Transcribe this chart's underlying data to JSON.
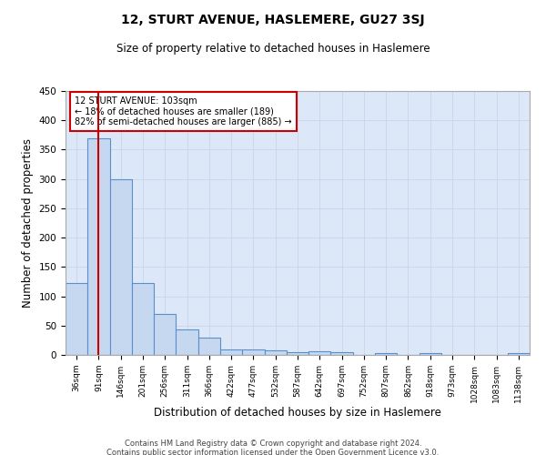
{
  "title": "12, STURT AVENUE, HASLEMERE, GU27 3SJ",
  "subtitle": "Size of property relative to detached houses in Haslemere",
  "xlabel": "Distribution of detached houses by size in Haslemere",
  "ylabel": "Number of detached properties",
  "footer_line1": "Contains HM Land Registry data © Crown copyright and database right 2024.",
  "footer_line2": "Contains public sector information licensed under the Open Government Licence v3.0.",
  "categories": [
    "36sqm",
    "91sqm",
    "146sqm",
    "201sqm",
    "256sqm",
    "311sqm",
    "366sqm",
    "422sqm",
    "477sqm",
    "532sqm",
    "587sqm",
    "642sqm",
    "697sqm",
    "752sqm",
    "807sqm",
    "862sqm",
    "918sqm",
    "973sqm",
    "1028sqm",
    "1083sqm",
    "1138sqm"
  ],
  "values": [
    123,
    370,
    300,
    123,
    70,
    44,
    29,
    9,
    10,
    7,
    5,
    6,
    4,
    0,
    3,
    0,
    3,
    0,
    0,
    0,
    3
  ],
  "bar_color": "#c5d8f0",
  "bar_edge_color": "#5b8fc9",
  "red_line_x": 1.0,
  "red_line_color": "#cc0000",
  "annotation_text": "12 STURT AVENUE: 103sqm\n← 18% of detached houses are smaller (189)\n82% of semi-detached houses are larger (885) →",
  "annotation_box_color": "#ffffff",
  "annotation_box_edge_color": "#cc0000",
  "ylim": [
    0,
    450
  ],
  "yticks": [
    0,
    50,
    100,
    150,
    200,
    250,
    300,
    350,
    400,
    450
  ],
  "bg_color": "#ffffff",
  "grid_color": "#c8d4e8",
  "plot_bg_color": "#dce8f8"
}
